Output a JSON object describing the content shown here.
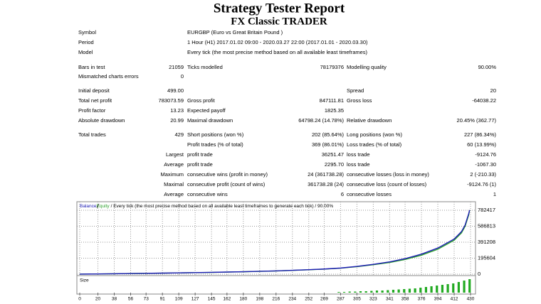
{
  "header": {
    "title": "Strategy Tester Report",
    "subtitle": "FX Classic TRADER"
  },
  "info": {
    "rows": [
      [
        "Symbol",
        "EURGBP (Euro vs Great Britain Pound )"
      ],
      [
        "Period",
        "1 Hour (H1) 2017.01.02 09:00 - 2020.03.27 22:00 (2017.01.01 - 2020.03.30)"
      ],
      [
        "Model",
        "Every tick (the most precise method based on all available least timeframes)"
      ]
    ]
  },
  "stats": {
    "rows": [
      [
        "Bars in test",
        "21059",
        "Ticks modelled",
        "78179376",
        "Modelling quality",
        "90.00%"
      ],
      [
        "Mismatched charts errors",
        "0",
        null,
        null,
        null,
        null
      ],
      [
        "Initial deposit",
        "499.00",
        null,
        null,
        "Spread",
        "20"
      ],
      [
        "Total net profit",
        "783073.59",
        "Gross profit",
        "847111.81",
        "Gross loss",
        "-64038.22"
      ],
      [
        "Profit factor",
        "13.23",
        "Expected payoff",
        "1825.35",
        null,
        null
      ],
      [
        "Absolute drawdown",
        "20.99",
        "Maximal drawdown",
        "64798.24 (14.78%)",
        "Relative drawdown",
        "20.45% (362.77)"
      ],
      [
        "Total trades",
        "429",
        "Short positions (won %)",
        "202 (85.64%)",
        "Long positions (won %)",
        "227 (86.34%)"
      ],
      [
        null,
        null,
        "Profit trades (% of total)",
        "369 (86.01%)",
        "Loss trades (% of total)",
        "60 (13.99%)"
      ],
      [
        null,
        "Largest",
        "profit trade",
        "36251.47",
        "loss trade",
        "-9124.76"
      ],
      [
        null,
        "Average",
        "profit trade",
        "2295.70",
        "loss trade",
        "-1067.30"
      ],
      [
        null,
        "Maximum",
        "consecutive wins (profit in money)",
        "24 (361738.28)",
        "consecutive losses (loss in money)",
        "2 (-210.33)"
      ],
      [
        null,
        "Maximal",
        "consecutive profit (count of wins)",
        "361738.28 (24)",
        "consecutive loss (count of losses)",
        "-9124.76 (1)"
      ],
      [
        null,
        "Average",
        "consecutive wins",
        "6",
        "consecutive losses",
        "1"
      ]
    ]
  },
  "chart_data": {
    "type": "line",
    "legend_note": "/ Every tick (the most precise method based on all available least timeframes to generate each tick) / 90.00%",
    "x": [
      0,
      20,
      38,
      56,
      73,
      91,
      109,
      127,
      145,
      162,
      180,
      198,
      216,
      234,
      252,
      269,
      287,
      305,
      323,
      341,
      358,
      376,
      394,
      412,
      420,
      424,
      428,
      429
    ],
    "series": [
      {
        "name": "Balance",
        "color": "#1c1cb4",
        "values": [
          499,
          3000,
          5000,
          8000,
          10000,
          13000,
          16000,
          19000,
          22000,
          26000,
          30000,
          35000,
          40000,
          47000,
          55000,
          63000,
          75000,
          95000,
          120000,
          150000,
          190000,
          245000,
          320000,
          430000,
          520000,
          600000,
          740000,
          783573
        ]
      },
      {
        "name": "Equity",
        "color": "#2ca02c",
        "values": [
          499,
          2900,
          4900,
          7800,
          9800,
          12700,
          15700,
          18600,
          21500,
          25500,
          29400,
          34300,
          39200,
          46000,
          53800,
          61500,
          73000,
          92000,
          116000,
          143000,
          180000,
          232000,
          305000,
          415000,
          505000,
          585000,
          725000,
          783573
        ]
      }
    ],
    "xlim": [
      0,
      430
    ],
    "ylim": [
      0,
      843000
    ],
    "xticks": [
      0,
      20,
      38,
      56,
      73,
      91,
      109,
      127,
      145,
      162,
      180,
      198,
      216,
      234,
      252,
      269,
      287,
      305,
      323,
      341,
      358,
      376,
      394,
      412,
      430
    ],
    "yticks": [
      0,
      195604,
      391208,
      586813,
      782417
    ],
    "grid": true,
    "size_panel": {
      "title": "Size",
      "color": "#22aa22",
      "ylim": [
        0,
        20
      ],
      "x": [
        285,
        291,
        297,
        303,
        309,
        315,
        321,
        327,
        333,
        339,
        345,
        351,
        357,
        363,
        369,
        375,
        381,
        387,
        393,
        399,
        405,
        411,
        417,
        423,
        429
      ],
      "values": [
        1,
        1,
        1.5,
        1.5,
        2,
        2,
        2.5,
        3,
        3,
        3.5,
        4,
        4.5,
        5,
        5.5,
        6,
        7,
        8,
        9,
        10,
        11,
        12,
        13,
        15,
        17,
        19
      ]
    }
  }
}
